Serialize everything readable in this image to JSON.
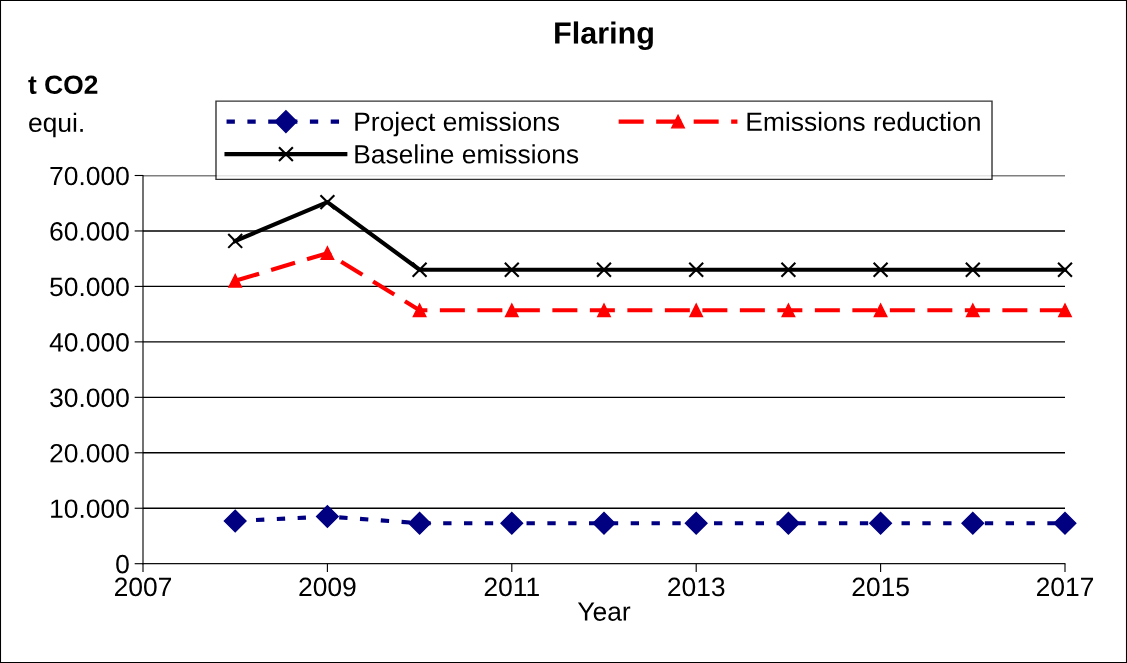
{
  "chart_data": {
    "type": "line",
    "title": "Flaring",
    "xlabel": "Year",
    "ylabel": "t CO2\nequi.",
    "x": [
      2008,
      2009,
      2010,
      2011,
      2012,
      2013,
      2014,
      2015,
      2016,
      2017
    ],
    "series": [
      {
        "name": "Project emissions",
        "color": "#000080",
        "marker": "diamond",
        "line_style": "dotted",
        "values": [
          7700,
          8500,
          7300,
          7300,
          7300,
          7300,
          7300,
          7300,
          7300,
          7300
        ]
      },
      {
        "name": "Baseline emissions",
        "color": "#000000",
        "marker": "cross",
        "line_style": "solid",
        "values": [
          58200,
          65200,
          53000,
          53000,
          53000,
          53000,
          53000,
          53000,
          53000,
          53000
        ]
      },
      {
        "name": "Emissions reduction",
        "color": "#ff0000",
        "marker": "triangle",
        "line_style": "dashed",
        "values": [
          51000,
          56000,
          45700,
          45700,
          45700,
          45700,
          45700,
          45700,
          45700,
          45700
        ]
      }
    ],
    "xlim": [
      2007,
      2017
    ],
    "xticks": [
      2007,
      2009,
      2011,
      2013,
      2015,
      2017
    ],
    "ylim": [
      0,
      70000
    ],
    "yticks": [
      {
        "value": 0,
        "label": "0"
      },
      {
        "value": 10000,
        "label": "10.000"
      },
      {
        "value": 20000,
        "label": "20.000"
      },
      {
        "value": 30000,
        "label": "30.000"
      },
      {
        "value": 40000,
        "label": "40.000"
      },
      {
        "value": 50000,
        "label": "50.000"
      },
      {
        "value": 60000,
        "label": "60.000"
      },
      {
        "value": 70000,
        "label": "70.000"
      }
    ],
    "grid": "y",
    "legend": "top"
  }
}
